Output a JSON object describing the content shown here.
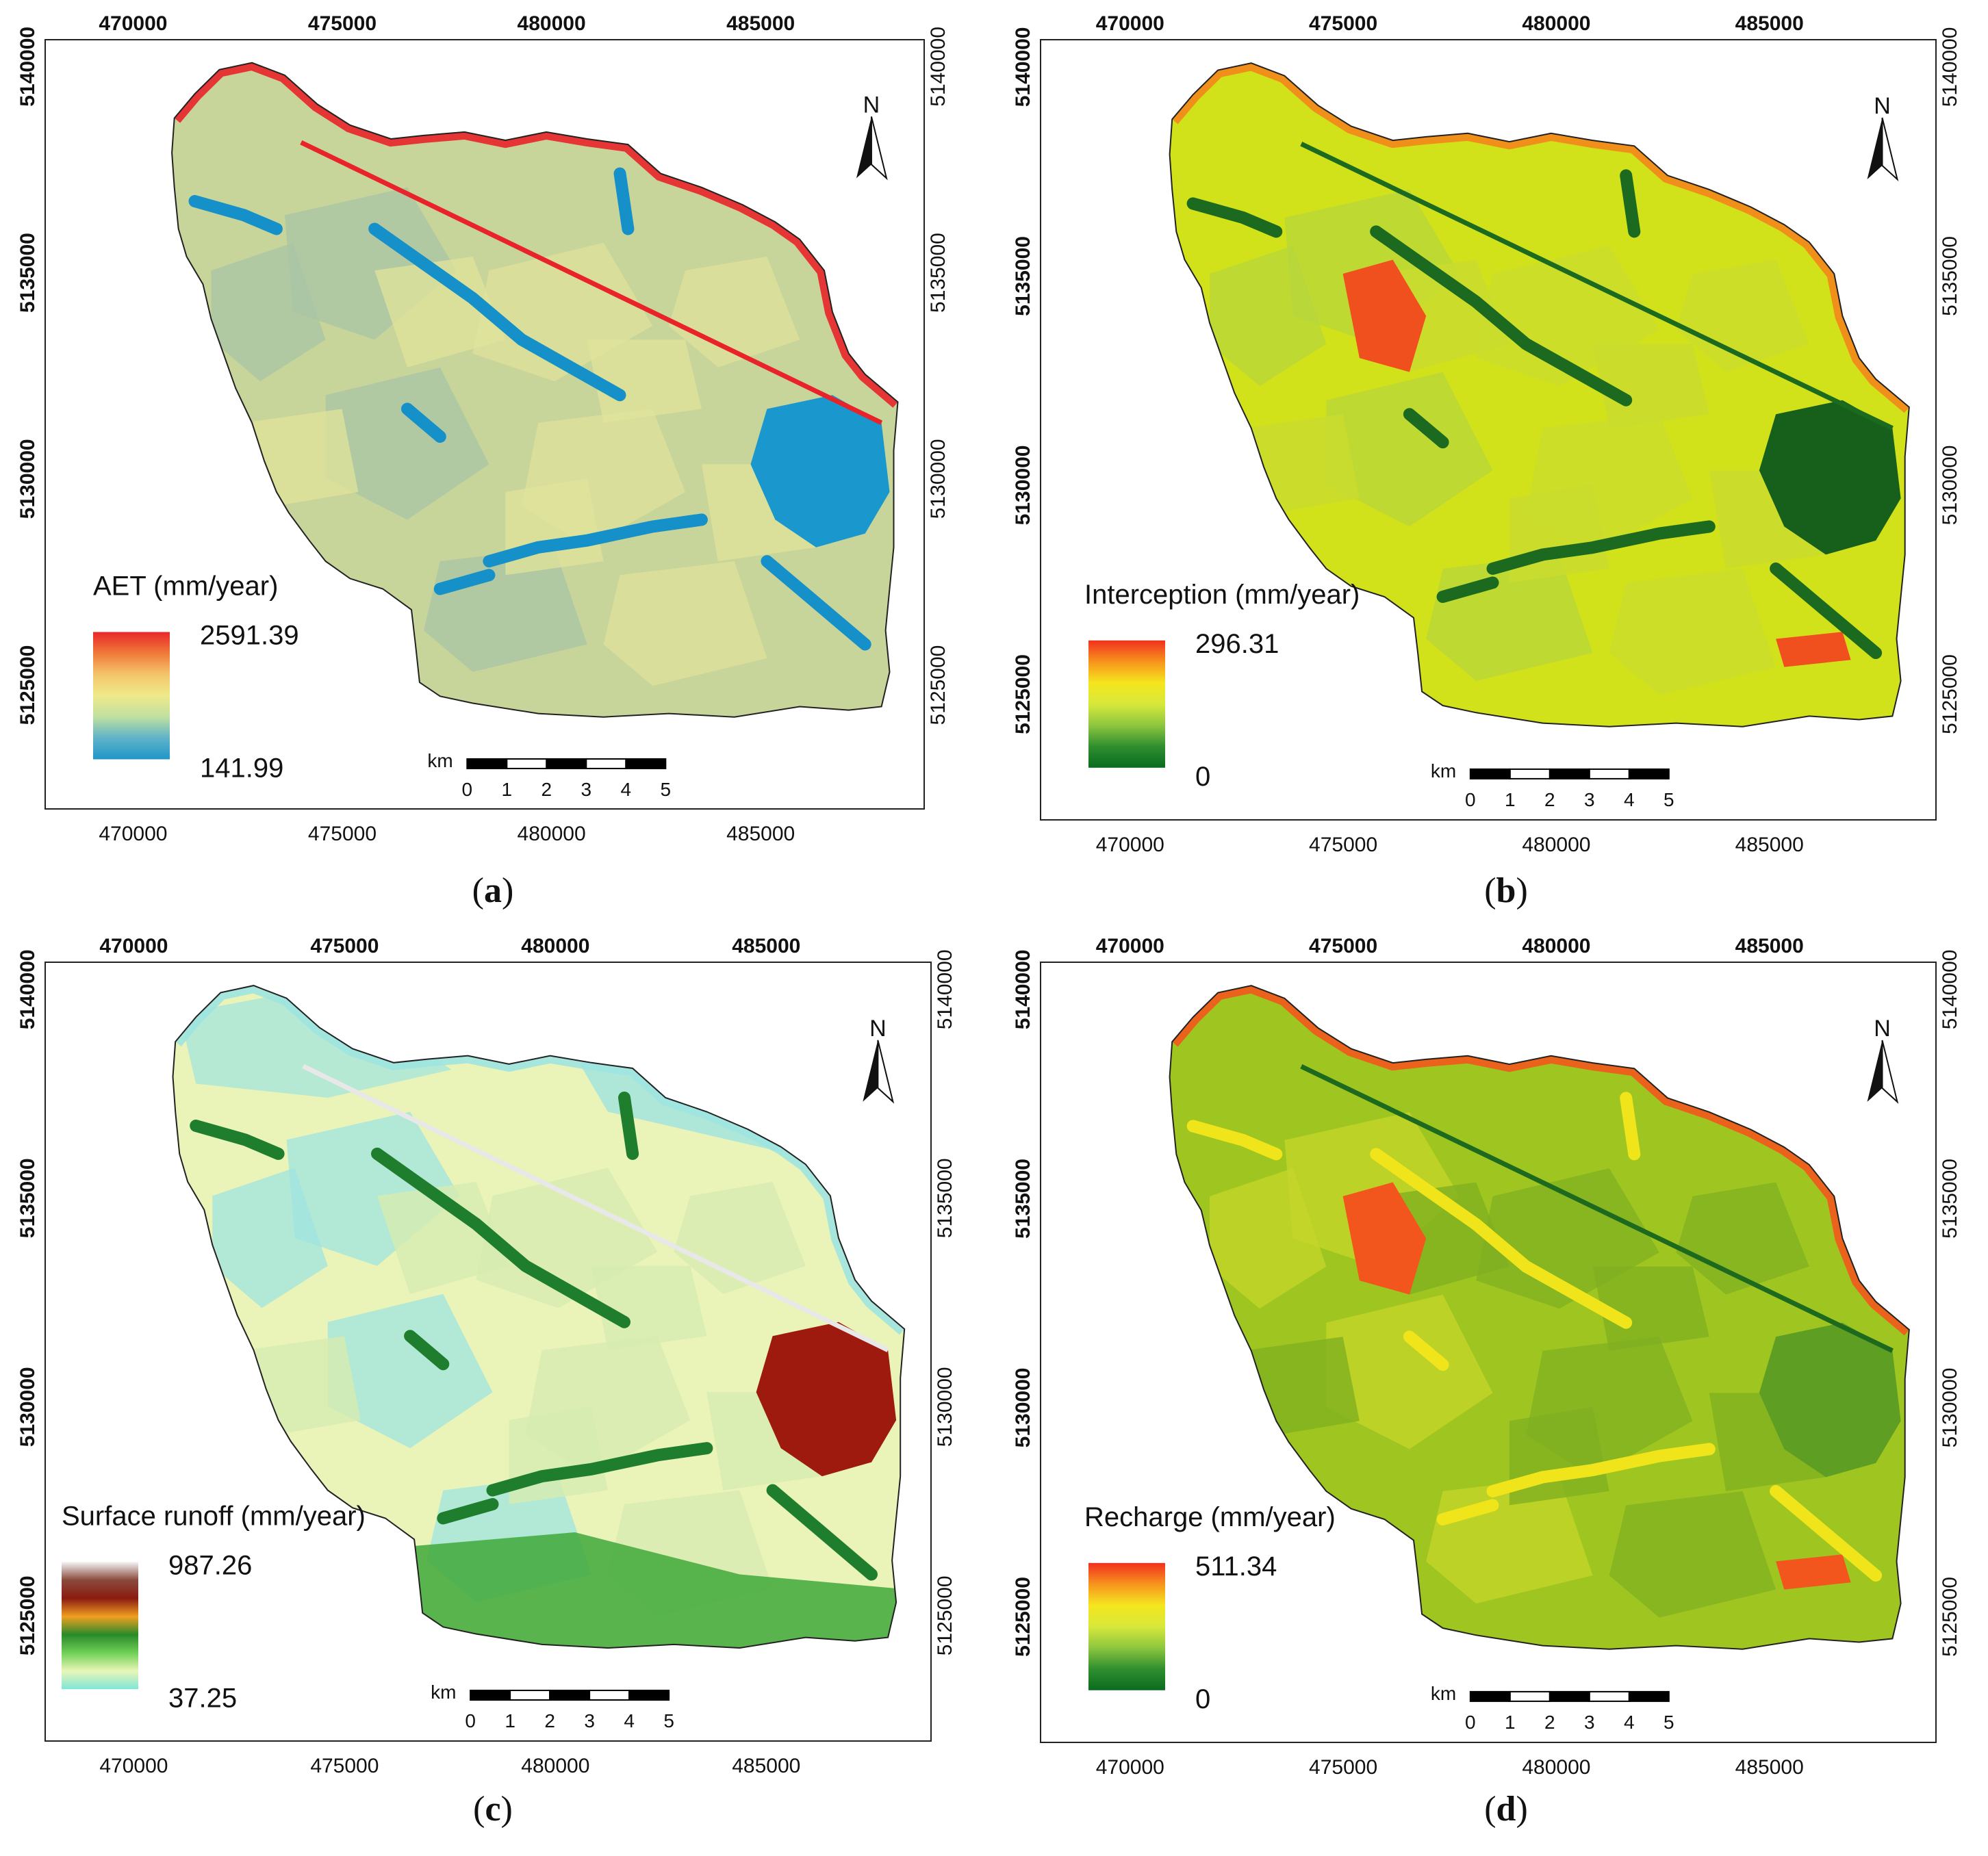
{
  "panels": [
    {
      "id": "a",
      "caption_letter": "a",
      "x_ticks": [
        "470000",
        "475000",
        "480000",
        "485000"
      ],
      "y_ticks": [
        "5140000",
        "5135000",
        "5130000",
        "5125000"
      ],
      "legend": {
        "title": "AET (mm/year)",
        "max_label": "2591.39",
        "min_label": "141.99",
        "colors": [
          "#e8282a",
          "#f07a3a",
          "#f3c56a",
          "#efe98a",
          "#bfe0a0",
          "#5fb3c9",
          "#1f96c8"
        ]
      },
      "map": {
        "base": "#c8d59a",
        "patch_a": "#dfe29a",
        "patch_b": "#a9c4a6",
        "channels": "#1590c8",
        "urban": "#1a97cc",
        "road": "#e8232a",
        "road_present": true,
        "coast": "#e8232a"
      },
      "north_label": "N",
      "scale": {
        "unit": "km",
        "labels": [
          "0",
          "1",
          "2",
          "3",
          "4",
          "5"
        ]
      }
    },
    {
      "id": "b",
      "caption_letter": "b",
      "x_ticks": [
        "470000",
        "475000",
        "480000",
        "485000"
      ],
      "y_ticks": [
        "5140000",
        "5135000",
        "5130000",
        "5125000"
      ],
      "legend": {
        "title": "Interception (mm/year)",
        "max_label": "296.31",
        "min_label": "0",
        "colors": [
          "#f0301e",
          "#f7941d",
          "#f5e61e",
          "#d7e83a",
          "#8dc63f",
          "#2f8f2f",
          "#0a6b1e"
        ]
      },
      "map": {
        "base": "#d2e21a",
        "patch_a": "#c9dc2e",
        "patch_b": "#b8d63c",
        "channels": "#1c6a1f",
        "urban": "#17601c",
        "road": "#1c6a1f",
        "road_present": true,
        "coast": "#f4861c",
        "hot": "#f0501e"
      },
      "north_label": "N",
      "scale": {
        "unit": "km",
        "labels": [
          "0",
          "1",
          "2",
          "3",
          "4",
          "5"
        ]
      }
    },
    {
      "id": "c",
      "caption_letter": "c",
      "x_ticks": [
        "470000",
        "475000",
        "480000",
        "485000"
      ],
      "y_ticks": [
        "5140000",
        "5135000",
        "5130000",
        "5125000"
      ],
      "legend": {
        "title": "Surface runoff (mm/year)",
        "max_label": "987.26",
        "min_label": "37.25",
        "colors": [
          "#f4f4f4",
          "#8a4a3c",
          "#8b1a10",
          "#f0a020",
          "#2a8a2a",
          "#6fcf55",
          "#e9f6b8",
          "#7fe6d6"
        ]
      },
      "map": {
        "base": "#eaf3b8",
        "patch_a": "#d6ebb0",
        "patch_b": "#9fe4e0",
        "channels": "#1f7e2e",
        "urban": "#9e1a0e",
        "road": "#e8e8e8",
        "road_present": true,
        "coast": "#9fe4e0",
        "green": "#3fa83a"
      },
      "north_label": "N",
      "scale": {
        "unit": "km",
        "labels": [
          "0",
          "1",
          "2",
          "3",
          "4",
          "5"
        ]
      }
    },
    {
      "id": "d",
      "caption_letter": "d",
      "x_ticks": [
        "470000",
        "475000",
        "480000",
        "485000"
      ],
      "y_ticks": [
        "5140000",
        "5135000",
        "5130000",
        "5125000"
      ],
      "legend": {
        "title": "Recharge (mm/year)",
        "max_label": "511.34",
        "min_label": "0",
        "colors": [
          "#f0301e",
          "#f7941d",
          "#f5e61e",
          "#d7e83a",
          "#8dc63f",
          "#2f8f2f",
          "#0a6b1e"
        ]
      },
      "map": {
        "base": "#9fc620",
        "patch_a": "#7fb020",
        "patch_b": "#c6d62a",
        "channels": "#f0e41a",
        "urban": "#5e9e22",
        "road": "#1d6a1f",
        "road_present": true,
        "coast": "#f2561c",
        "hot": "#f2561c"
      },
      "north_label": "N",
      "scale": {
        "unit": "km",
        "labels": [
          "0",
          "1",
          "2",
          "3",
          "4",
          "5"
        ]
      }
    }
  ]
}
